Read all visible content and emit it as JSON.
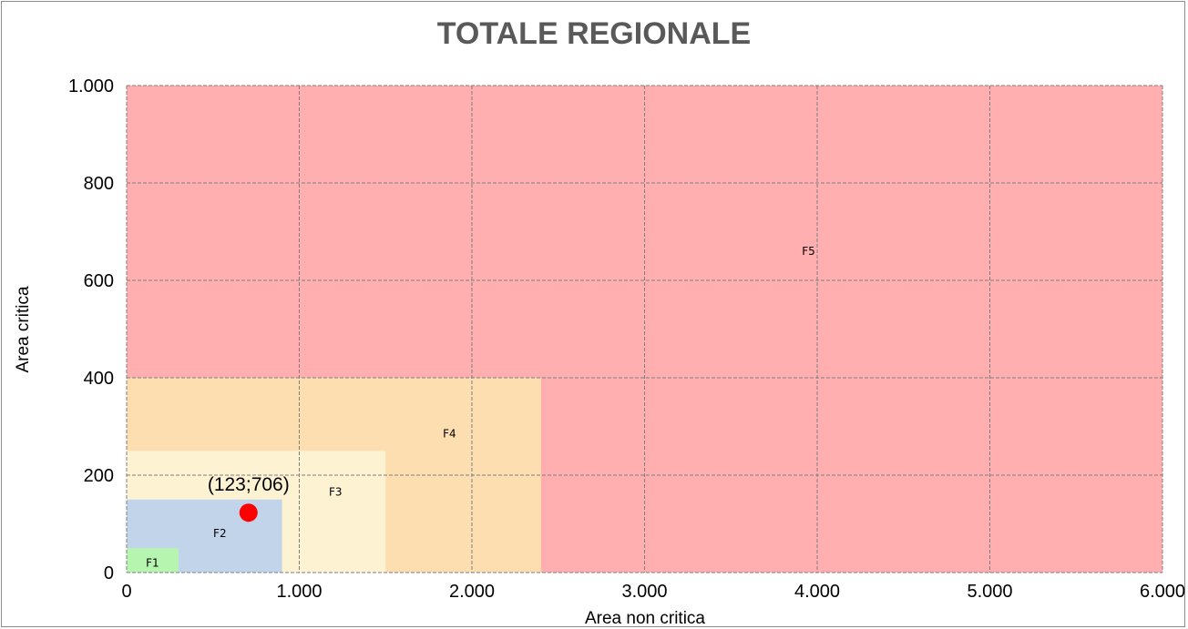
{
  "chart_data": {
    "type": "scatter",
    "title": "TOTALE REGIONALE",
    "xlabel": "Area non critica",
    "ylabel": "Area critica",
    "xlim": [
      0,
      6000
    ],
    "ylim": [
      0,
      1000
    ],
    "x_ticks": [
      {
        "value": 0,
        "label": "0"
      },
      {
        "value": 1000,
        "label": "1.000"
      },
      {
        "value": 2000,
        "label": "2.000"
      },
      {
        "value": 3000,
        "label": "3.000"
      },
      {
        "value": 4000,
        "label": "4.000"
      },
      {
        "value": 5000,
        "label": "5.000"
      },
      {
        "value": 6000,
        "label": "6.000"
      }
    ],
    "y_ticks": [
      {
        "value": 0,
        "label": "0"
      },
      {
        "value": 200,
        "label": "200"
      },
      {
        "value": 400,
        "label": "400"
      },
      {
        "value": 600,
        "label": "600"
      },
      {
        "value": 800,
        "label": "800"
      },
      {
        "value": 1000,
        "label": "1.000"
      }
    ],
    "grid": true,
    "zones": [
      {
        "label": "F5",
        "x": [
          0,
          6000
        ],
        "y": [
          0,
          1000
        ],
        "color": "#ffafaf",
        "label_at": [
          3950,
          660
        ]
      },
      {
        "label": "F4",
        "x": [
          0,
          2400
        ],
        "y": [
          0,
          400
        ],
        "color": "#fcdeb0",
        "label_at": [
          1870,
          285
        ]
      },
      {
        "label": "F3",
        "x": [
          0,
          1500
        ],
        "y": [
          0,
          250
        ],
        "color": "#fdf2d2",
        "label_at": [
          1210,
          165
        ]
      },
      {
        "label": "F2",
        "x": [
          0,
          900
        ],
        "y": [
          0,
          150
        ],
        "color": "#c2d4ea",
        "label_at": [
          540,
          80
        ]
      },
      {
        "label": "F1",
        "x": [
          0,
          300
        ],
        "y": [
          0,
          50
        ],
        "color": "#b6f5b0",
        "label_at": [
          150,
          20
        ]
      }
    ],
    "points": [
      {
        "x": 706,
        "y": 123,
        "label": "(123;706)",
        "color": "#ff0000"
      }
    ]
  }
}
